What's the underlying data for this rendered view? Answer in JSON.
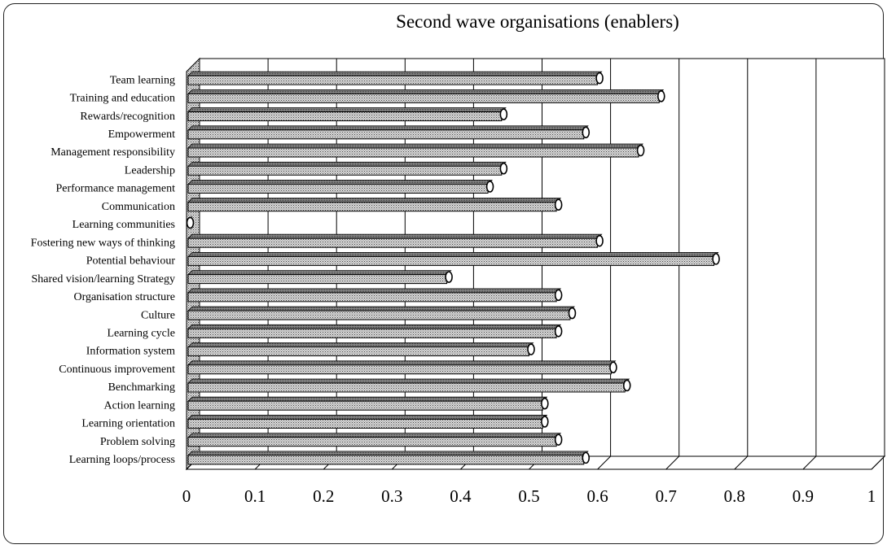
{
  "chart_data": {
    "type": "bar",
    "orientation": "horizontal",
    "title": "Second wave organisations (enablers)",
    "xlabel": "",
    "ylabel": "",
    "xlim": [
      0,
      1
    ],
    "grid": true,
    "legend": false,
    "categories": [
      "Team learning",
      "Training and education",
      "Rewards/recognition",
      "Empowerment",
      "Management responsibility",
      "Leadership",
      "Performance management",
      "Communication",
      "Learning communities",
      "Fostering new ways of thinking",
      "Potential behaviour",
      "Shared vision/learning Strategy",
      "Organisation structure",
      "Culture",
      "Learning cycle",
      "Information system",
      "Continuous improvement",
      "Benchmarking",
      "Action learning",
      "Learning orientation",
      "Problem solving",
      "Learning loops/process"
    ],
    "values": [
      0.6,
      0.69,
      0.46,
      0.58,
      0.66,
      0.46,
      0.44,
      0.54,
      0.0,
      0.6,
      0.77,
      0.38,
      0.54,
      0.56,
      0.54,
      0.5,
      0.62,
      0.64,
      0.52,
      0.52,
      0.54,
      0.58
    ],
    "x_ticks": [
      "0",
      "0.1",
      "0.2",
      "0.3",
      "0.4",
      "0.5",
      "0.6",
      "0.7",
      "0.8",
      "0.9",
      "1"
    ]
  }
}
